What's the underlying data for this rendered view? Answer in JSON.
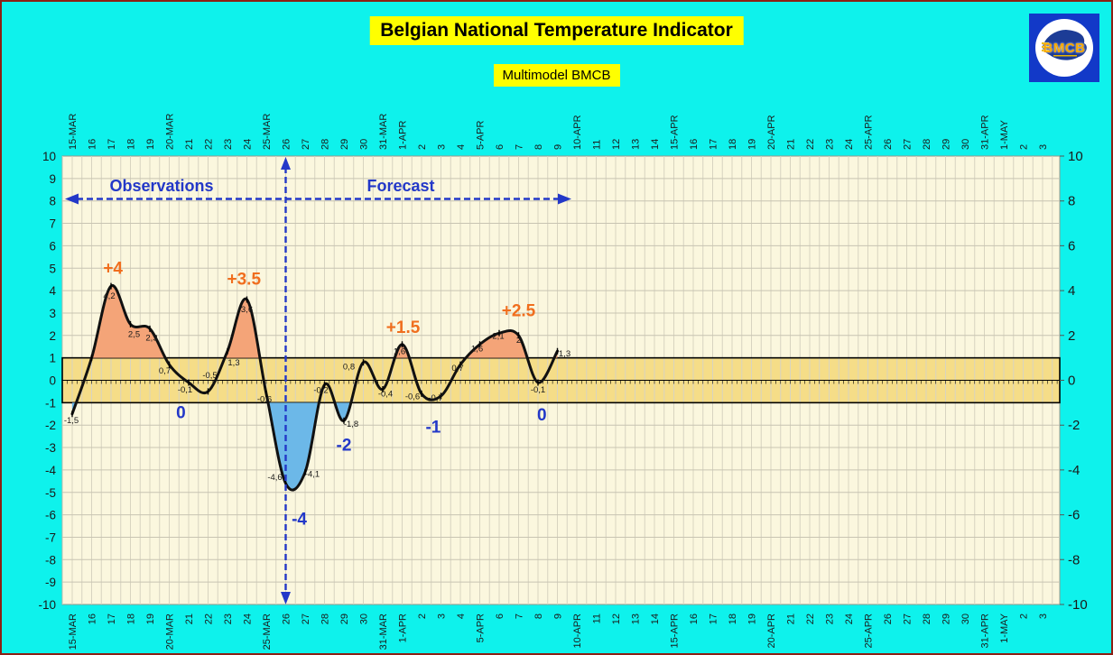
{
  "title": "Belgian National Temperature Indicator",
  "subtitle": "Multimodel BMCB",
  "logo": {
    "text": "BMCB"
  },
  "regions": {
    "observations_label": "Observations",
    "forecast_label": "Forecast"
  },
  "axis": {
    "y_min": -10,
    "y_max": 10,
    "y_left": [
      "10",
      "9",
      "8",
      "7",
      "6",
      "5",
      "4",
      "3",
      "2",
      "1",
      "0",
      "-1",
      "-2",
      "-3",
      "-4",
      "-5",
      "-6",
      "-7",
      "-8",
      "-9",
      "-10"
    ],
    "y_right": [
      "10",
      "8",
      "6",
      "4",
      "2",
      "0",
      "-2",
      "-4",
      "-6",
      "-8",
      "-10"
    ],
    "x_labels": [
      "15-MAR",
      "16",
      "17",
      "18",
      "19",
      "20-MAR",
      "21",
      "22",
      "23",
      "24",
      "25-MAR",
      "26",
      "27",
      "28",
      "29",
      "30",
      "31-MAR",
      "1-APR",
      "2",
      "3",
      "4",
      "5-APR",
      "6",
      "7",
      "8",
      "9",
      "10-APR",
      "11",
      "12",
      "13",
      "14",
      "15-APR",
      "16",
      "17",
      "18",
      "19",
      "20-APR",
      "21",
      "22",
      "23",
      "24",
      "25-APR",
      "26",
      "27",
      "28",
      "29",
      "30",
      "31-APR",
      "1-MAY",
      "2",
      "3"
    ]
  },
  "band": {
    "from": -1,
    "to": 1
  },
  "chart_data": {
    "type": "line",
    "title": "Belgian National Temperature Indicator",
    "subtitle": "Multimodel BMCB",
    "ylim": [
      -10,
      10
    ],
    "grid": true,
    "divider_day": 11,
    "x": [
      "15-MAR",
      "16-MAR",
      "17-MAR",
      "18-MAR",
      "19-MAR",
      "20-MAR",
      "21-MAR",
      "22-MAR",
      "23-MAR",
      "24-MAR",
      "25-MAR",
      "26-MAR",
      "27-MAR",
      "28-MAR",
      "29-MAR",
      "30-MAR",
      "31-MAR",
      "1-APR",
      "2-APR",
      "3-APR",
      "4-APR",
      "5-APR",
      "6-APR",
      "7-APR",
      "8-APR",
      "9-APR"
    ],
    "values": [
      -1.5,
      1,
      4.2,
      2.5,
      2.3,
      0.7,
      -0.1,
      -0.5,
      1.3,
      3.6,
      -0.6,
      -4.6,
      -4.1,
      -0.2,
      -1.8,
      0.8,
      -0.4,
      1.6,
      -0.6,
      -0.7,
      0.7,
      1.6,
      2.1,
      2,
      -0.1,
      1.3
    ],
    "point_labels": [
      "-1,5",
      "",
      "4,2",
      "2,5",
      "2,3",
      "0,7",
      "-0,1",
      "-0,5",
      "1,3",
      "3,6",
      "-0,6",
      "-4,6",
      "-4,1",
      "-0,2",
      "-1,8",
      "0,8",
      "-0,4",
      "1,6",
      "-0,6",
      "-0,7",
      "0,7",
      "1,6",
      "2,1",
      "2",
      "-0,1",
      "1,3"
    ],
    "annotations": [
      {
        "text": "+4",
        "color": "orange",
        "day": 2.1,
        "value": 5.0
      },
      {
        "text": "+3.5",
        "color": "orange",
        "day": 8.85,
        "value": 4.5
      },
      {
        "text": "+1.5",
        "color": "orange",
        "day": 17.05,
        "value": 2.35
      },
      {
        "text": "+2.5",
        "color": "orange",
        "day": 23.0,
        "value": 3.1
      },
      {
        "text": "0",
        "color": "blue",
        "day": 5.6,
        "value": -1.45
      },
      {
        "text": "-4",
        "color": "blue",
        "day": 11.7,
        "value": -6.2
      },
      {
        "text": "-2",
        "color": "blue",
        "day": 14.0,
        "value": -2.9
      },
      {
        "text": "-1",
        "color": "blue",
        "day": 18.6,
        "value": -2.1
      },
      {
        "text": "0",
        "color": "blue",
        "day": 24.2,
        "value": -1.55
      }
    ]
  },
  "colors": {
    "background": "#0ef2ec",
    "page_border": "#8b2015",
    "banner_bg": "#ffff00",
    "plot_bg": "#fbf7de",
    "band_fill": "#f5dd88",
    "grid_v": "#d8d4c0",
    "grid_h": "#c8c4b2",
    "curve": "#111111",
    "fill_above": "#f4a478",
    "fill_below": "#6cb8e8",
    "accent_blue": "#2338c8",
    "accent_orange": "#f06e1e",
    "logo_bg": "#1239c8",
    "logo_text": "#f6a800"
  }
}
